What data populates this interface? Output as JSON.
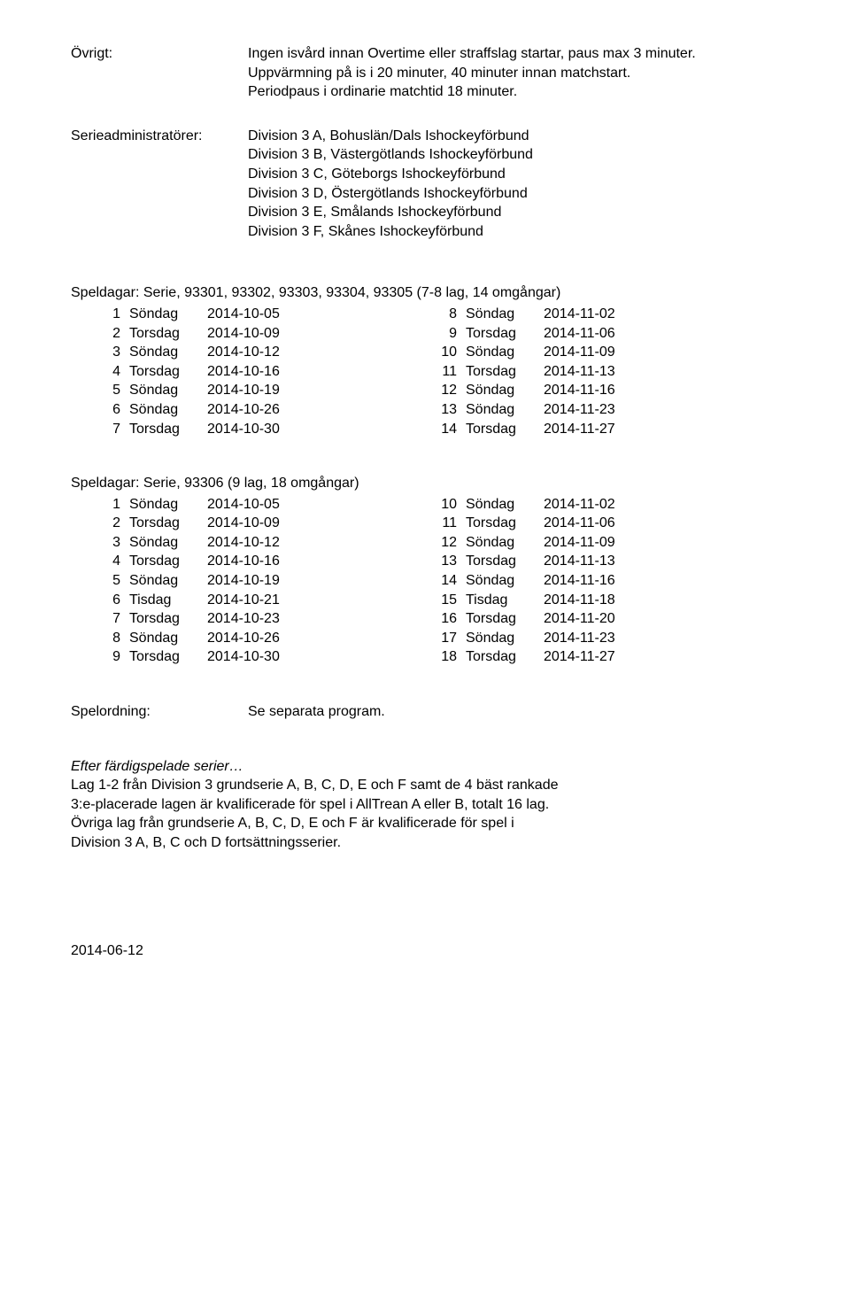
{
  "ovrigt": {
    "label": "Övrigt:",
    "line1": "Ingen isvård innan Overtime eller straffslag startar, paus max 3 minuter.",
    "line2": "Uppvärmning på is i 20 minuter, 40 minuter innan matchstart.",
    "line3": "Periodpaus i ordinarie matchtid 18 minuter."
  },
  "serieadmin": {
    "label": "Serieadministratörer:",
    "lines": [
      "Division 3 A, Bohuslän/Dals Ishockeyförbund",
      "Division 3 B, Västergötlands Ishockeyförbund",
      "Division 3 C, Göteborgs Ishockeyförbund",
      "Division 3 D, Östergötlands Ishockeyförbund",
      "Division 3 E, Smålands Ishockeyförbund",
      "Division 3 F, Skånes Ishockeyförbund"
    ]
  },
  "schedule1": {
    "title": "Speldagar: Serie, 93301, 93302, 93303, 93304, 93305 (7-8 lag, 14 omgångar)",
    "rows": [
      {
        "ln": "1",
        "ld": "Söndag",
        "ldt": "2014-10-05",
        "rn": "8",
        "rd": "Söndag",
        "rdt": "2014-11-02"
      },
      {
        "ln": "2",
        "ld": "Torsdag",
        "ldt": "2014-10-09",
        "rn": "9",
        "rd": "Torsdag",
        "rdt": "2014-11-06"
      },
      {
        "ln": "3",
        "ld": "Söndag",
        "ldt": "2014-10-12",
        "rn": "10",
        "rd": "Söndag",
        "rdt": "2014-11-09"
      },
      {
        "ln": "4",
        "ld": "Torsdag",
        "ldt": "2014-10-16",
        "rn": "11",
        "rd": "Torsdag",
        "rdt": "2014-11-13"
      },
      {
        "ln": "5",
        "ld": "Söndag",
        "ldt": "2014-10-19",
        "rn": "12",
        "rd": "Söndag",
        "rdt": "2014-11-16"
      },
      {
        "ln": "6",
        "ld": "Söndag",
        "ldt": "2014-10-26",
        "rn": "13",
        "rd": "Söndag",
        "rdt": "2014-11-23"
      },
      {
        "ln": "7",
        "ld": "Torsdag",
        "ldt": "2014-10-30",
        "rn": "14",
        "rd": "Torsdag",
        "rdt": "2014-11-27"
      }
    ]
  },
  "schedule2": {
    "title": "Speldagar: Serie, 93306 (9 lag, 18 omgångar)",
    "rows": [
      {
        "ln": "1",
        "ld": "Söndag",
        "ldt": "2014-10-05",
        "rn": "10",
        "rd": "Söndag",
        "rdt": "2014-11-02"
      },
      {
        "ln": "2",
        "ld": "Torsdag",
        "ldt": "2014-10-09",
        "rn": "11",
        "rd": "Torsdag",
        "rdt": "2014-11-06"
      },
      {
        "ln": "3",
        "ld": "Söndag",
        "ldt": "2014-10-12",
        "rn": "12",
        "rd": "Söndag",
        "rdt": "2014-11-09"
      },
      {
        "ln": "4",
        "ld": "Torsdag",
        "ldt": "2014-10-16",
        "rn": "13",
        "rd": "Torsdag",
        "rdt": "2014-11-13"
      },
      {
        "ln": "5",
        "ld": "Söndag",
        "ldt": "2014-10-19",
        "rn": "14",
        "rd": "Söndag",
        "rdt": "2014-11-16"
      },
      {
        "ln": "6",
        "ld": "Tisdag",
        "ldt": "2014-10-21",
        "rn": "15",
        "rd": "Tisdag",
        "rdt": "2014-11-18"
      },
      {
        "ln": "7",
        "ld": "Torsdag",
        "ldt": "2014-10-23",
        "rn": "16",
        "rd": "Torsdag",
        "rdt": "2014-11-20"
      },
      {
        "ln": "8",
        "ld": "Söndag",
        "ldt": "2014-10-26",
        "rn": "17",
        "rd": "Söndag",
        "rdt": "2014-11-23"
      },
      {
        "ln": "9",
        "ld": "Torsdag",
        "ldt": "2014-10-30",
        "rn": "18",
        "rd": "Torsdag",
        "rdt": "2014-11-27"
      }
    ]
  },
  "spelordning": {
    "label": "Spelordning:",
    "value": "Se separata program."
  },
  "efter": {
    "title": "Efter färdigspelade serier…",
    "line1": "Lag 1-2 från Division 3 grundserie A, B, C, D, E och F samt de 4 bäst rankade",
    "line2": "3:e-placerade lagen är kvalificerade för spel i AllTrean A eller B, totalt 16 lag.",
    "line3": "Övriga lag från grundserie A, B, C, D, E och F är kvalificerade för spel i",
    "line4": "Division 3 A, B, C och D fortsättningsserier."
  },
  "footer_date": "2014-06-12"
}
